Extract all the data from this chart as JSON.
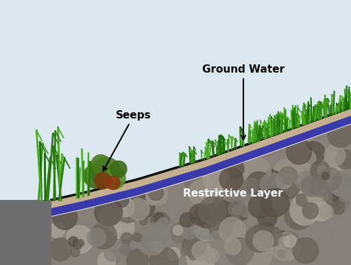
{
  "sky_color": "#dce8f0",
  "rock_color": "#888078",
  "rock_dark": "#6a6458",
  "soil_color": "#c4b090",
  "water_color": "#3a3aaa",
  "road_color": "#6e6e6e",
  "surface_line_color": "#111111",
  "grass_colors": [
    "#2a7a10",
    "#3a9a15",
    "#4aaa20",
    "#1a6a08"
  ],
  "shrub_green": "#4a7a20",
  "shrub_red": "#7a3a10",
  "label_seeps": "Seeps",
  "label_groundwater": "Ground Water",
  "label_restrictive": "Restrictive Layer",
  "white": "#ffffff"
}
